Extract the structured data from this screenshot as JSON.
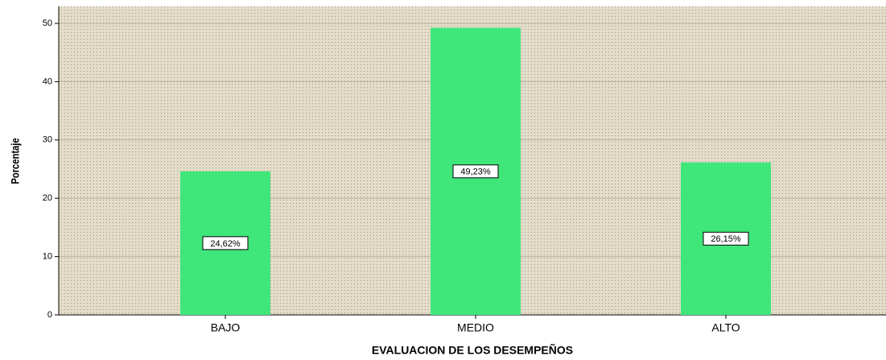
{
  "chart_data": {
    "type": "bar",
    "x_label": "EVALUACION DE LOS DESEMPEÑOS",
    "y_label": "Porcentaje",
    "categories": [
      "BAJO",
      "MEDIO",
      "ALTO"
    ],
    "values": [
      24.62,
      49.23,
      26.15
    ],
    "value_labels": [
      "24,62%",
      "49,23%",
      "26,15%"
    ],
    "color": "#3fe67a",
    "ylim": [
      0,
      52.9
    ],
    "yticks": [
      0,
      10,
      20,
      30,
      40,
      50
    ],
    "grid": true
  }
}
